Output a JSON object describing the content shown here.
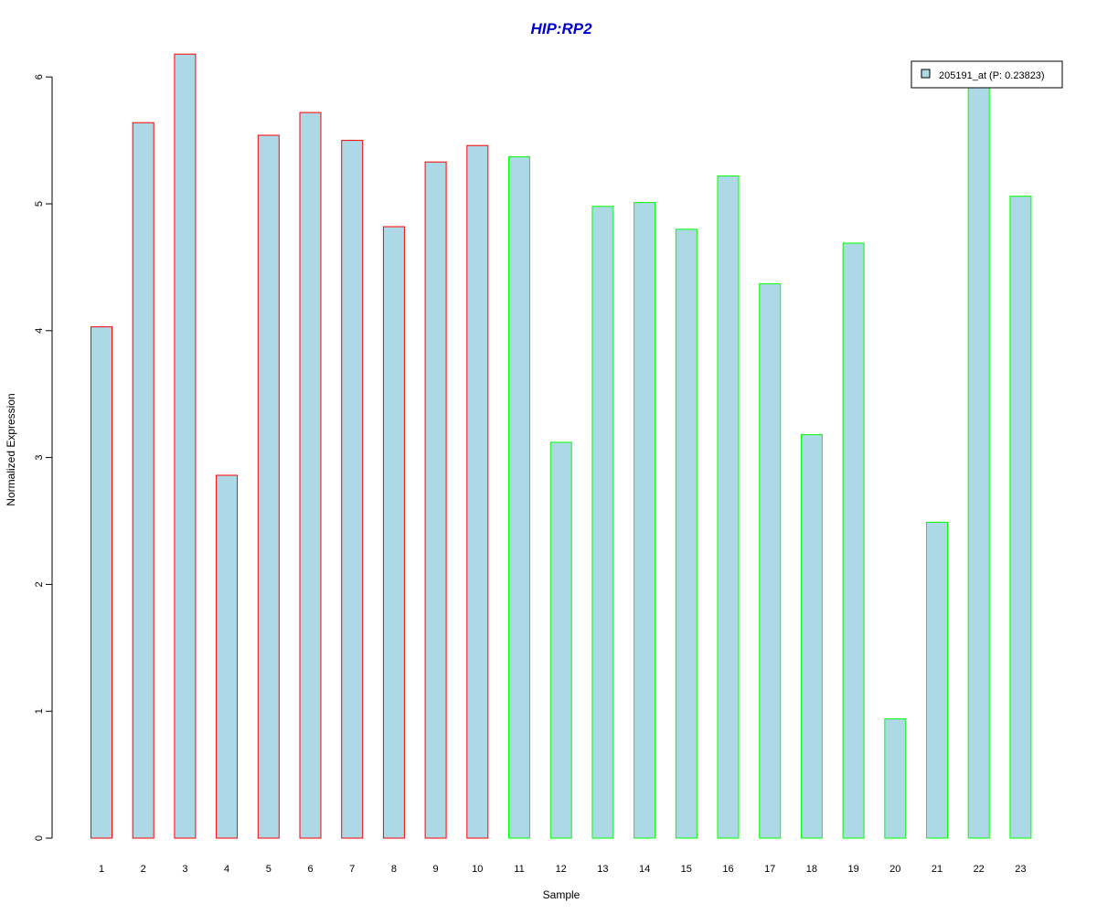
{
  "chart_data": {
    "type": "bar",
    "title": "HIP:RP2",
    "xlabel": "Sample",
    "ylabel": "Normalized Expression",
    "ylim": [
      0,
      6.2
    ],
    "yticks": [
      "0",
      "1",
      "2",
      "3",
      "4",
      "5",
      "6"
    ],
    "categories": [
      "1",
      "2",
      "3",
      "4",
      "5",
      "6",
      "7",
      "8",
      "9",
      "10",
      "11",
      "12",
      "13",
      "14",
      "15",
      "16",
      "17",
      "18",
      "19",
      "20",
      "21",
      "22",
      "23"
    ],
    "series": [
      {
        "name": "205191_at (P: 0.23823)",
        "values": [
          4.03,
          5.64,
          6.18,
          2.86,
          5.54,
          5.72,
          5.5,
          4.82,
          5.33,
          5.46,
          5.37,
          3.12,
          4.98,
          5.01,
          4.8,
          5.22,
          4.37,
          3.18,
          4.69,
          0.94,
          2.49,
          5.93,
          5.06
        ]
      }
    ],
    "groups": [
      {
        "range": [
          1,
          10
        ],
        "border_color": "#ff0000"
      },
      {
        "range": [
          11,
          23
        ],
        "border_color": "#00ff00"
      }
    ],
    "fill_color": "#add8e6",
    "title_color": "#0000cc",
    "legend": {
      "position": "top-right",
      "label": "205191_at (P: 0.23823)"
    },
    "grid": false
  }
}
